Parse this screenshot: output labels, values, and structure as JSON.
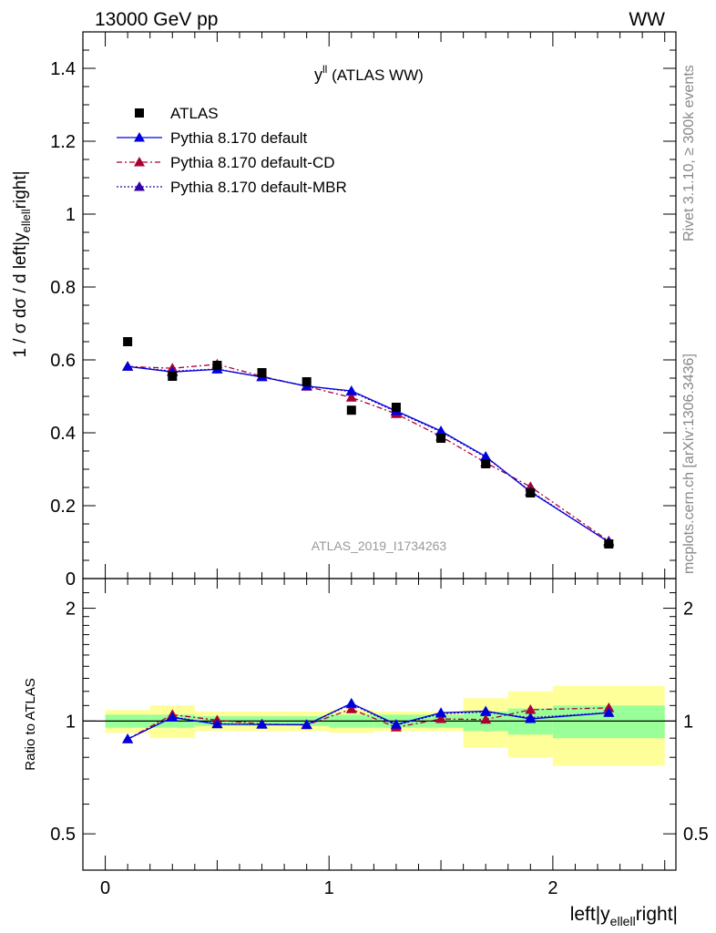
{
  "header": {
    "left_label": "13000 GeV pp",
    "right_label": "WW"
  },
  "side_labels": {
    "right_top": "Rivet 3.1.10, ≥ 300k events",
    "right_bottom": "mcplots.cern.ch [arXiv:1306.3436]"
  },
  "chart_data": [
    {
      "type": "scatter",
      "title_main": "y",
      "title_sup": "ll",
      "title_rest": " (ATLAS WW)",
      "ylabel": "1 / σ  dσ / d left|y",
      "ylabel_sub": "ellell",
      "ylabel_end": "right|",
      "watermark": "ATLAS_2019_I1734263",
      "xlim": [
        -0.1,
        2.55
      ],
      "ylim": [
        0,
        1.5
      ],
      "y_ticks": [
        0,
        0.2,
        0.4,
        0.6,
        0.8,
        1,
        1.2,
        1.4
      ],
      "y_tick_labels": [
        "0",
        "0.2",
        "0.4",
        "0.6",
        "0.8",
        "1",
        "1.2",
        "1.4"
      ],
      "bins": [
        0,
        0.2,
        0.4,
        0.6,
        0.8,
        1.0,
        1.2,
        1.4,
        1.6,
        1.8,
        2.0,
        2.5
      ],
      "x": [
        0.1,
        0.3,
        0.5,
        0.7,
        0.9,
        1.1,
        1.3,
        1.5,
        1.7,
        1.9,
        2.25
      ],
      "legend": [
        {
          "name": "ATLAS",
          "marker": "square",
          "color": "#000000",
          "dash": ""
        },
        {
          "name": "Pythia 8.170 default",
          "marker": "triangle",
          "color": "#0000dd",
          "dash": ""
        },
        {
          "name": "Pythia 8.170 default-CD",
          "marker": "triangle",
          "color": "#aa0033",
          "dash": "6,3,2,3"
        },
        {
          "name": "Pythia 8.170 default-MBR",
          "marker": "triangle",
          "color": "#3300aa",
          "dash": "2,2"
        }
      ],
      "series": [
        {
          "name": "ATLAS",
          "values": [
            0.65,
            0.555,
            0.585,
            0.565,
            0.54,
            0.462,
            0.47,
            0.385,
            0.315,
            0.235,
            0.095
          ]
        },
        {
          "name": "Pythia 8.170 default",
          "values": [
            0.582,
            0.567,
            0.574,
            0.553,
            0.528,
            0.515,
            0.46,
            0.405,
            0.335,
            0.238,
            0.1
          ]
        },
        {
          "name": "Pythia 8.170 default-CD",
          "values": [
            0.582,
            0.577,
            0.588,
            0.555,
            0.527,
            0.497,
            0.452,
            0.39,
            0.318,
            0.252,
            0.103
          ]
        },
        {
          "name": "Pythia 8.170 default-MBR",
          "values": [
            0.582,
            0.569,
            0.575,
            0.553,
            0.528,
            0.513,
            0.458,
            0.403,
            0.333,
            0.24,
            0.1
          ]
        }
      ]
    },
    {
      "type": "scatter",
      "ylabel": "Ratio to ATLAS",
      "xlabel_pre": "left|y",
      "xlabel_sub": "ellell",
      "xlabel_post": "right|",
      "ylim": [
        0.4,
        2.4
      ],
      "y_scale": "log",
      "y_tick_labels_major": [
        {
          "value": 0.5,
          "label": "0.5"
        },
        {
          "value": 1,
          "label": "1"
        },
        {
          "value": 2,
          "label": "2"
        }
      ],
      "x_ticks": [
        0,
        1,
        2
      ],
      "x_tick_labels": [
        "0",
        "1",
        "2"
      ],
      "band_green": [
        0.04,
        0.04,
        0.03,
        0.03,
        0.03,
        0.04,
        0.04,
        0.04,
        0.06,
        0.08,
        0.1
      ],
      "band_yellow": [
        0.07,
        0.1,
        0.06,
        0.06,
        0.06,
        0.07,
        0.06,
        0.06,
        0.15,
        0.2,
        0.24
      ],
      "series": [
        {
          "name": "Pythia 8.170 default",
          "values": [
            0.895,
            1.022,
            0.981,
            0.979,
            0.978,
            1.115,
            0.979,
            1.052,
            1.063,
            1.013,
            1.052
          ]
        },
        {
          "name": "Pythia 8.170 default-CD",
          "values": [
            0.895,
            1.04,
            1.005,
            0.982,
            0.976,
            1.076,
            0.962,
            1.013,
            1.009,
            1.072,
            1.084
          ]
        },
        {
          "name": "Pythia 8.170 default-MBR",
          "values": [
            0.895,
            1.025,
            0.983,
            0.979,
            0.978,
            1.11,
            0.974,
            1.047,
            1.057,
            1.021,
            1.053
          ]
        }
      ]
    }
  ]
}
